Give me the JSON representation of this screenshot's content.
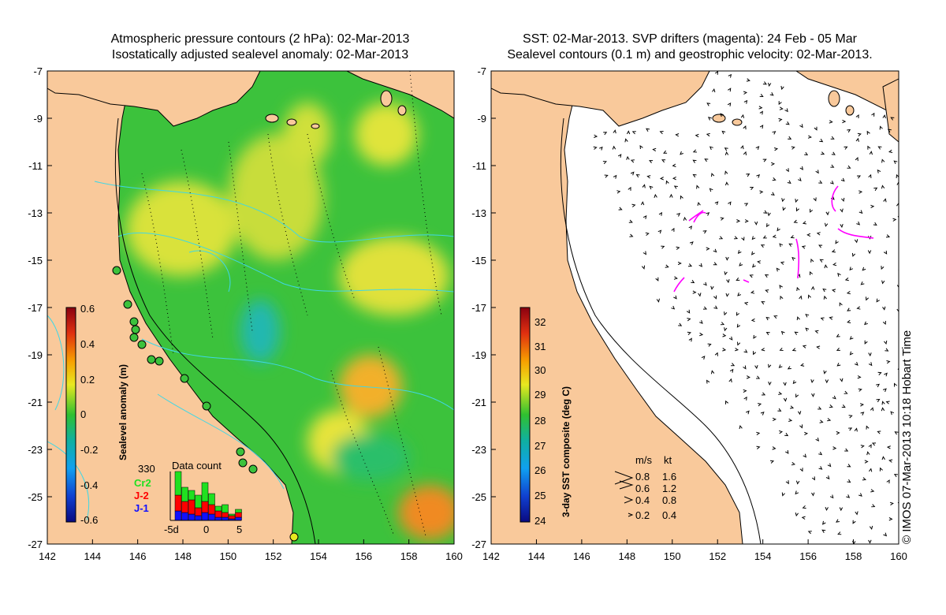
{
  "left_map": {
    "title_line1": "Atmospheric pressure contours (2 hPa): 02-Mar-2013",
    "title_line2": "Isostatically adjusted sealevel anomaly: 02-Mar-2013",
    "colorbar_label": "Sealevel anomaly (m)",
    "colorbar_ticks": [
      "0.6",
      "0.4",
      "0.2",
      "0",
      "-0.2",
      "-0.4",
      "-0.6"
    ],
    "inset": {
      "title": "Data count",
      "max_label": "330",
      "series": [
        "Cr2",
        "J-2",
        "J-1"
      ],
      "series_colors": [
        "#20e020",
        "#ff0000",
        "#1010ff"
      ],
      "xticks": [
        "-5d",
        "0",
        "5"
      ]
    }
  },
  "right_map": {
    "title_line1": "SST: 02-Mar-2013. SVP drifters (magenta): 24 Feb - 05 Mar",
    "title_line2": "Sealevel contours (0.1 m) and geostrophic velocity: 02-Mar-2013.",
    "colorbar_label": "3-day SST composite (deg C)",
    "colorbar_ticks": [
      "32",
      "31",
      "30",
      "29",
      "28",
      "27",
      "26",
      "25",
      "24"
    ],
    "legend": {
      "headers": [
        "m/s",
        "kt"
      ],
      "rows": [
        [
          "0.8",
          "1.6"
        ],
        [
          "0.6",
          "1.2"
        ],
        [
          "0.4",
          "0.8"
        ],
        [
          "0.2",
          "0.4"
        ]
      ]
    }
  },
  "axes": {
    "lat_ticks": [
      "-7",
      "-9",
      "-11",
      "-13",
      "-15",
      "-17",
      "-19",
      "-21",
      "-23",
      "-25",
      "-27"
    ],
    "lon_ticks": [
      "142",
      "144",
      "146",
      "148",
      "150",
      "152",
      "154",
      "156",
      "158",
      "160"
    ]
  },
  "copyright": "© IMOS 07-Mar-2013 10:18 Hobart Time",
  "colors": {
    "land": "#f9c99b",
    "ocean_green": "#3cc23c",
    "ocean_yellow": "#d7e23a",
    "vector_ocean": "#ffffff",
    "drifter": "#ff00ff",
    "contour_cyan": "#3fd7e6"
  }
}
